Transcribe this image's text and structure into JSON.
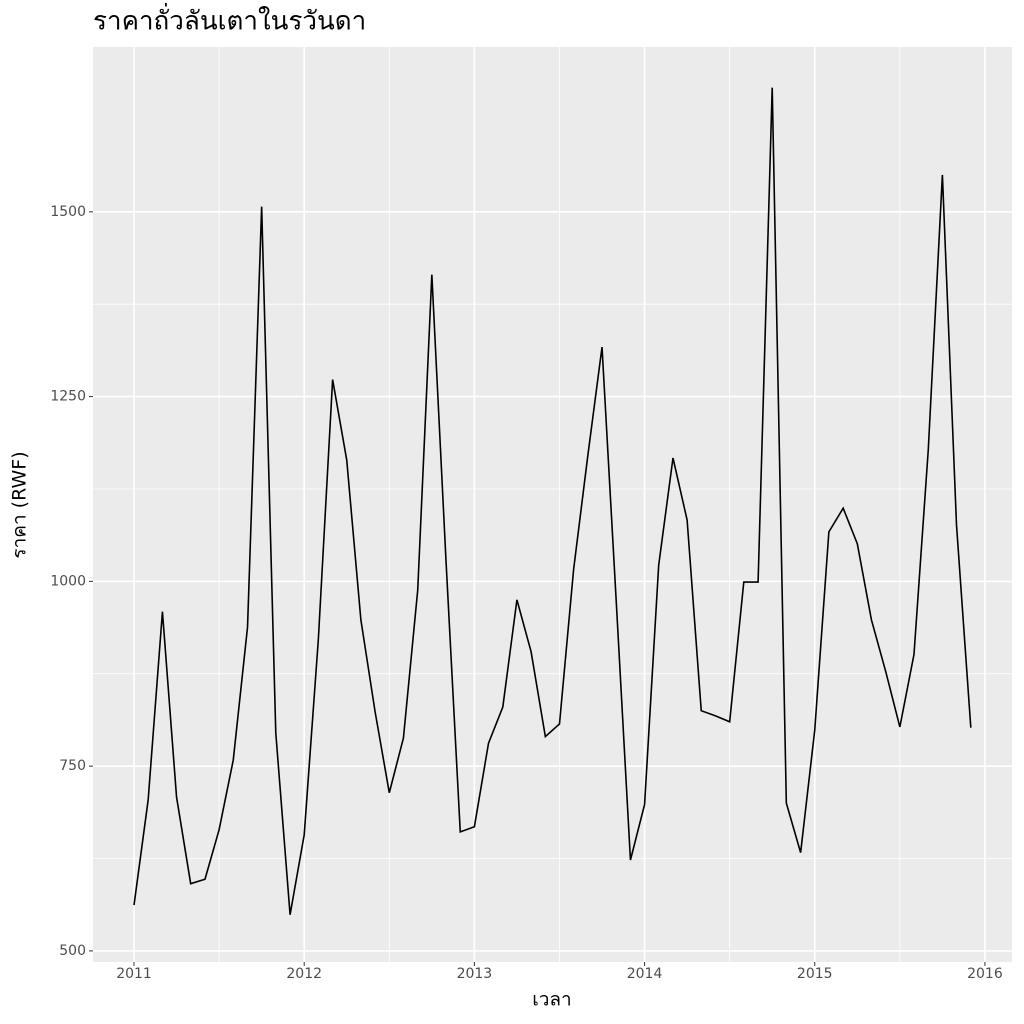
{
  "chart_data": {
    "type": "line",
    "title": "ราคาถั่วลันเตาในรวันดา",
    "x_label": "เวลา",
    "y_label": "ราคา (RWF)",
    "x": [
      2011,
      2011.083,
      2011.167,
      2011.25,
      2011.333,
      2011.417,
      2011.5,
      2011.583,
      2011.667,
      2011.75,
      2011.833,
      2011.917,
      2012,
      2012.083,
      2012.167,
      2012.25,
      2012.333,
      2012.417,
      2012.5,
      2012.583,
      2012.667,
      2012.75,
      2012.833,
      2012.917,
      2013,
      2013.083,
      2013.167,
      2013.25,
      2013.333,
      2013.417,
      2013.5,
      2013.583,
      2013.667,
      2013.75,
      2013.833,
      2013.917,
      2014,
      2014.083,
      2014.167,
      2014.25,
      2014.333,
      2014.417,
      2014.5,
      2014.583,
      2014.667,
      2014.75,
      2014.833,
      2014.917,
      2015,
      2015.083,
      2015.167,
      2015.25,
      2015.333,
      2015.417,
      2015.5,
      2015.583,
      2015.667,
      2015.75,
      2015.833,
      2015.917
    ],
    "series": [
      {
        "name": "ราคา",
        "color": "#000000",
        "values": [
          562,
          704,
          959,
          708,
          591,
          597,
          664,
          758,
          938,
          1507,
          795,
          549,
          657,
          921,
          1273,
          1164,
          948,
          823,
          714,
          788,
          988,
          1415,
          1029,
          661,
          668,
          781,
          830,
          975,
          905,
          790,
          807,
          1016,
          1171,
          1317,
          975,
          623,
          698,
          1022,
          1167,
          1083,
          825,
          818,
          810,
          999,
          999,
          1668,
          700,
          633,
          799,
          1067,
          1099,
          1051,
          948,
          878,
          803,
          901,
          1178,
          1550,
          1076,
          802
        ]
      }
    ],
    "xlim": [
      2010.759,
      2016.159
    ],
    "ylim": [
      485,
      1723
    ],
    "xticks": [
      2011,
      2012,
      2013,
      2014,
      2015,
      2016
    ],
    "yticks": [
      500,
      750,
      1000,
      1250,
      1500
    ],
    "grid": true,
    "minor_grid": true,
    "legend": false
  }
}
